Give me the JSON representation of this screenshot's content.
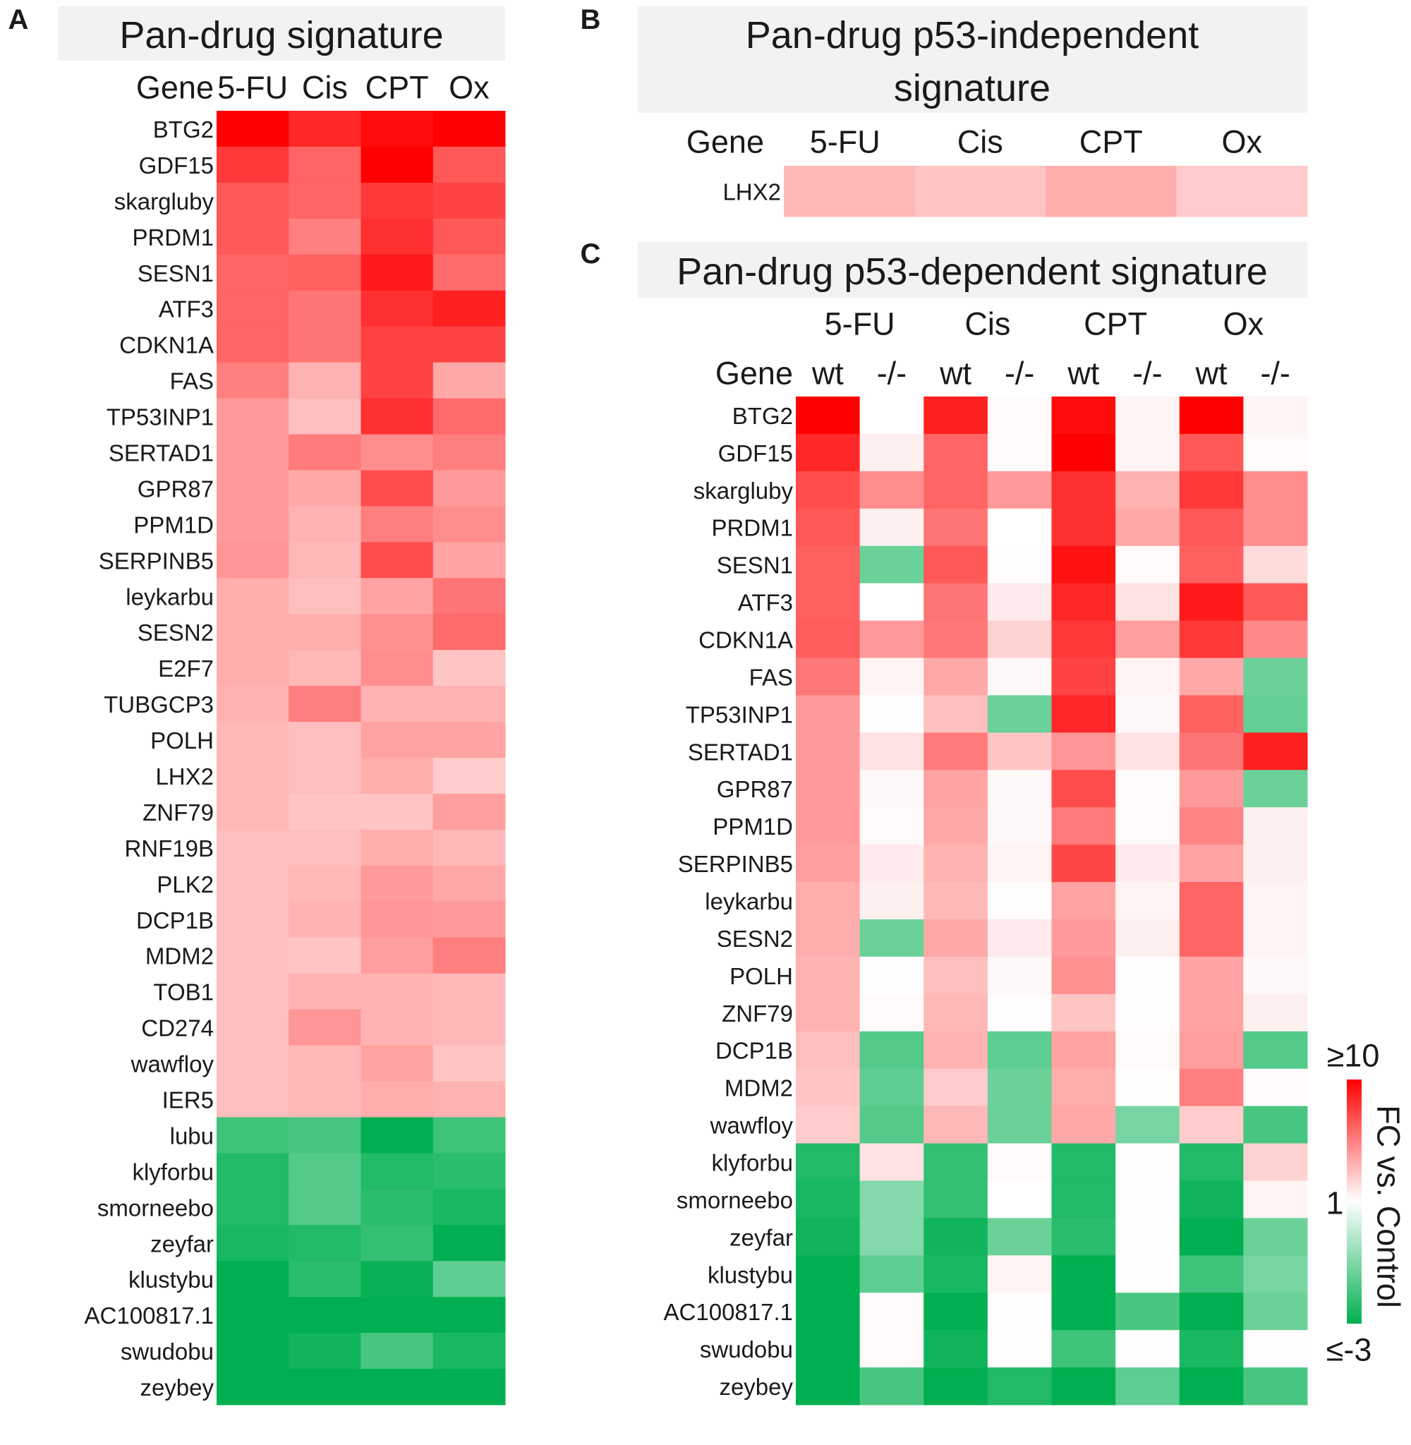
{
  "chart_data": [
    {
      "type": "heatmap",
      "panel_label": "A",
      "title": "Pan-drug signature",
      "row_header": "Gene",
      "columns": [
        "5-FU",
        "Cis",
        "CPT",
        "Ox"
      ],
      "rows": [
        "BTG2",
        "GDF15",
        "skargluby",
        "PRDM1",
        "SESN1",
        "ATF3",
        "CDKN1A",
        "FAS",
        "TP53INP1",
        "SERTAD1",
        "GPR87",
        "PPM1D",
        "SERPINB5",
        "leykarbu",
        "SESN2",
        "E2F7",
        "TUBGCP3",
        "POLH",
        "LHX2",
        "ZNF79",
        "RNF19B",
        "PLK2",
        "DCP1B",
        "MDM2",
        "TOB1",
        "CD274",
        "wawfloy",
        "IER5",
        "lubu",
        "klyforbu",
        "smorneebo",
        "zeyfar",
        "klustybu",
        "AC100817.1",
        "swudobu",
        "zeybey"
      ],
      "values": [
        [
          10,
          7,
          9,
          10
        ],
        [
          6,
          4,
          10,
          4.5
        ],
        [
          4.5,
          4,
          6,
          5.5
        ],
        [
          4.5,
          3.2,
          6.5,
          4.5
        ],
        [
          4,
          4.2,
          8,
          3.8
        ],
        [
          4,
          3.5,
          6.5,
          7.5
        ],
        [
          4,
          3.5,
          5.5,
          5.5
        ],
        [
          3.2,
          2,
          5.5,
          2.2
        ],
        [
          2.5,
          1.8,
          6.5,
          3.8
        ],
        [
          2.5,
          3.3,
          2.8,
          3.2
        ],
        [
          2.5,
          2.2,
          5,
          2.5
        ],
        [
          2.5,
          2,
          3.2,
          2.8
        ],
        [
          2.6,
          1.9,
          5,
          2.3
        ],
        [
          2.1,
          1.8,
          2.3,
          3.5
        ],
        [
          2.1,
          2.1,
          2.7,
          3.8
        ],
        [
          2.1,
          1.9,
          2.8,
          1.7
        ],
        [
          2,
          3.2,
          2,
          2
        ],
        [
          1.9,
          1.8,
          2.3,
          2.3
        ],
        [
          1.9,
          1.8,
          2.1,
          1.6
        ],
        [
          1.9,
          1.7,
          1.7,
          2.4
        ],
        [
          1.8,
          1.8,
          2.1,
          1.9
        ],
        [
          1.8,
          1.9,
          2.5,
          2.2
        ],
        [
          1.8,
          2,
          2.6,
          2.5
        ],
        [
          1.8,
          1.7,
          2.4,
          3.2
        ],
        [
          1.8,
          2,
          2,
          1.9
        ],
        [
          1.8,
          2.6,
          2,
          1.9
        ],
        [
          1.8,
          1.9,
          2.3,
          1.7
        ],
        [
          1.8,
          1.9,
          2.1,
          2
        ],
        [
          -2.3,
          -2.2,
          -3,
          -2.3
        ],
        [
          -2.6,
          -2.1,
          -2.6,
          -2.5
        ],
        [
          -2.6,
          -2.1,
          -2.5,
          -2.7
        ],
        [
          -2.7,
          -2.6,
          -2.4,
          -3
        ],
        [
          -3,
          -2.5,
          -2.9,
          -2
        ],
        [
          -3,
          -3,
          -3,
          -3
        ],
        [
          -3,
          -2.8,
          -2.2,
          -2.7
        ],
        [
          -3,
          -3,
          -3,
          -3
        ]
      ]
    },
    {
      "type": "heatmap",
      "panel_label": "B",
      "title": "Pan-drug p53-independent signature",
      "row_header": "Gene",
      "columns": [
        "5-FU",
        "Cis",
        "CPT",
        "Ox"
      ],
      "rows": [
        "LHX2"
      ],
      "values": [
        [
          1.9,
          1.7,
          2.1,
          1.6
        ]
      ]
    },
    {
      "type": "heatmap",
      "panel_label": "C",
      "title": "Pan-drug p53-dependent signature",
      "row_header": "Gene",
      "groups": [
        "5-FU",
        "Cis",
        "CPT",
        "Ox"
      ],
      "columns": [
        "wt",
        "-/-",
        "wt",
        "-/-",
        "wt",
        "-/-",
        "wt",
        "-/-"
      ],
      "rows": [
        "BTG2",
        "GDF15",
        "skargluby",
        "PRDM1",
        "SESN1",
        "ATF3",
        "CDKN1A",
        "FAS",
        "TP53INP1",
        "SERTAD1",
        "GPR87",
        "PPM1D",
        "SERPINB5",
        "leykarbu",
        "SESN2",
        "POLH",
        "ZNF79",
        "DCP1B",
        "MDM2",
        "wawfloy",
        "klyforbu",
        "smorneebo",
        "zeyfar",
        "klustybu",
        "AC100817.1",
        "swudobu",
        "zeybey"
      ],
      "values": [
        [
          10,
          1,
          7.5,
          1.05,
          9,
          1.1,
          10,
          1.1
        ],
        [
          7,
          1.15,
          4,
          1.05,
          10,
          1.1,
          4.5,
          1.05
        ],
        [
          5,
          2.8,
          4,
          2.5,
          6.5,
          2,
          6,
          2.8
        ],
        [
          4.5,
          1.15,
          3.5,
          1,
          6.5,
          2.2,
          4.5,
          2.8
        ],
        [
          4.2,
          -1.9,
          4.5,
          1.02,
          8.5,
          1.05,
          4.2,
          1.4
        ],
        [
          4.2,
          1,
          3.5,
          1.2,
          7,
          1.3,
          8,
          4.5
        ],
        [
          4.3,
          2.5,
          3.4,
          1.5,
          6,
          2.4,
          6,
          2.9
        ],
        [
          3.4,
          1.1,
          2.2,
          1.07,
          5.5,
          1.1,
          2.2,
          -1.9
        ],
        [
          2.5,
          1.02,
          1.8,
          -1.9,
          7,
          1.07,
          4.2,
          -1.95
        ],
        [
          2.5,
          1.3,
          3.3,
          1.7,
          2.6,
          1.3,
          3.5,
          7.5
        ],
        [
          2.5,
          1.07,
          2.3,
          1.07,
          5,
          1.05,
          2.5,
          -1.9
        ],
        [
          2.5,
          1.05,
          2.2,
          1.07,
          3.3,
          1.05,
          3,
          1.15
        ],
        [
          2.4,
          1.2,
          2,
          1.1,
          5.3,
          1.2,
          2.3,
          1.15
        ],
        [
          2.1,
          1.15,
          1.9,
          1.03,
          2.3,
          1.1,
          4,
          1.1
        ],
        [
          2.1,
          -1.9,
          2.2,
          1.2,
          2.5,
          1.15,
          4,
          1.1
        ],
        [
          2,
          1.02,
          1.8,
          1.07,
          2.7,
          1.02,
          2.3,
          1.07
        ],
        [
          2,
          1.05,
          1.9,
          1.02,
          1.7,
          1.02,
          2.3,
          1.15
        ],
        [
          1.8,
          -2.1,
          2,
          -2,
          2.3,
          1.05,
          2.4,
          -2.1
        ],
        [
          1.7,
          -2,
          1.6,
          -1.9,
          2.1,
          1.02,
          3.2,
          1.05
        ],
        [
          1.6,
          -2.1,
          1.9,
          -1.9,
          2.2,
          -1.8,
          1.6,
          -2.2
        ],
        [
          -2.6,
          1.3,
          -2.4,
          1.05,
          -2.6,
          1.02,
          -2.6,
          1.5
        ],
        [
          -2.7,
          -1.7,
          -2.4,
          1,
          -2.6,
          1.02,
          -2.8,
          1.1
        ],
        [
          -2.8,
          -1.7,
          -2.8,
          -1.9,
          -2.5,
          1.02,
          -3,
          -1.9
        ],
        [
          -3,
          -2,
          -2.7,
          1.1,
          -3,
          1.02,
          -2.3,
          -1.8
        ],
        [
          -3,
          1.05,
          -3,
          1.02,
          -3,
          -2.2,
          -3,
          -1.9
        ],
        [
          -3,
          1.05,
          -2.8,
          1.02,
          -2.3,
          1.02,
          -2.7,
          1.02
        ],
        [
          -3,
          -2.2,
          -3,
          -2.6,
          -3,
          -2,
          -3,
          -2.2
        ]
      ]
    }
  ],
  "legend": {
    "title": "FC vs. Control",
    "max_label": "≥10",
    "mid_label": "1",
    "min_label": "≤-3",
    "max_value": 10,
    "min_value": -3,
    "colors": {
      "high": "#FF0000",
      "mid": "#FFFFFF",
      "low": "#00B050"
    }
  },
  "title_band_color": "#F2F2F2"
}
